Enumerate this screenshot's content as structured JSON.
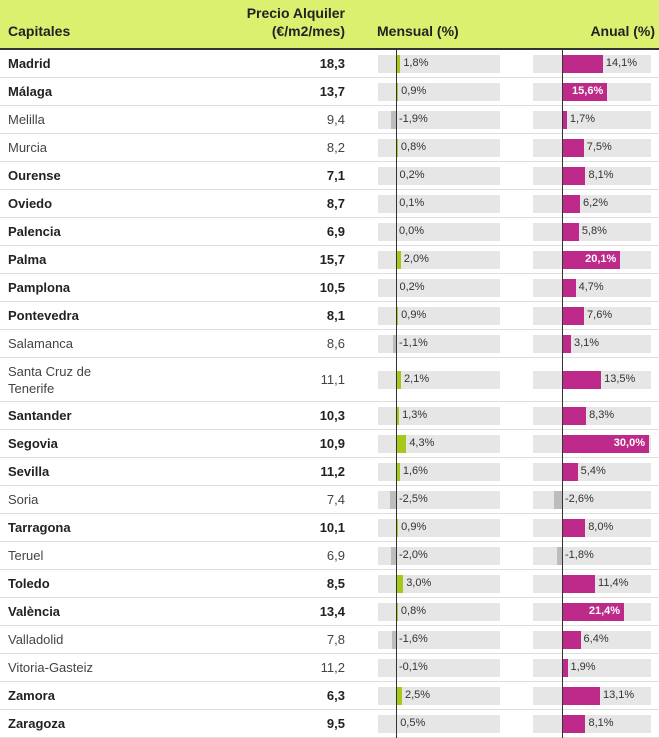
{
  "headers": {
    "capital": "Capitales",
    "price_line1": "Precio Alquiler",
    "price_line2": "(€/m2/mes)",
    "monthly": "Mensual (%)",
    "annual": "Anual (%)"
  },
  "colors": {
    "header_bg": "#dcf06f",
    "monthly_positive": "#a6c81b",
    "annual_positive": "#bd2a8a",
    "negative": "#bdbdbd",
    "track": "#e6e6e6"
  },
  "chart_data": {
    "type": "table",
    "columns": [
      "Capitales",
      "Precio Alquiler (€/m2/mes)",
      "Mensual (%)",
      "Anual (%)"
    ],
    "rows": [
      {
        "capital": "Madrid",
        "price": "18,3",
        "monthly": 1.8,
        "monthly_label": "1,8%",
        "annual": 14.1,
        "annual_label": "14,1%",
        "bold": true
      },
      {
        "capital": "Málaga",
        "price": "13,7",
        "monthly": 0.9,
        "monthly_label": "0,9%",
        "annual": 15.6,
        "annual_label": "15,6%",
        "bold": true
      },
      {
        "capital": "Melilla",
        "price": "9,4",
        "monthly": -1.9,
        "monthly_label": "-1,9%",
        "annual": 1.7,
        "annual_label": "1,7%",
        "bold": false
      },
      {
        "capital": "Murcia",
        "price": "8,2",
        "monthly": 0.8,
        "monthly_label": "0,8%",
        "annual": 7.5,
        "annual_label": "7,5%",
        "bold": false
      },
      {
        "capital": "Ourense",
        "price": "7,1",
        "monthly": 0.2,
        "monthly_label": "0,2%",
        "annual": 8.1,
        "annual_label": "8,1%",
        "bold": true
      },
      {
        "capital": "Oviedo",
        "price": "8,7",
        "monthly": 0.1,
        "monthly_label": "0,1%",
        "annual": 6.2,
        "annual_label": "6,2%",
        "bold": true
      },
      {
        "capital": "Palencia",
        "price": "6,9",
        "monthly": 0.0,
        "monthly_label": "0,0%",
        "annual": 5.8,
        "annual_label": "5,8%",
        "bold": true
      },
      {
        "capital": "Palma",
        "price": "15,7",
        "monthly": 2.0,
        "monthly_label": "2,0%",
        "annual": 20.1,
        "annual_label": "20,1%",
        "bold": true
      },
      {
        "capital": "Pamplona",
        "price": "10,5",
        "monthly": 0.2,
        "monthly_label": "0,2%",
        "annual": 4.7,
        "annual_label": "4,7%",
        "bold": true
      },
      {
        "capital": "Pontevedra",
        "price": "8,1",
        "monthly": 0.9,
        "monthly_label": "0,9%",
        "annual": 7.6,
        "annual_label": "7,6%",
        "bold": true
      },
      {
        "capital": "Salamanca",
        "price": "8,6",
        "monthly": -1.1,
        "monthly_label": "-1,1%",
        "annual": 3.1,
        "annual_label": "3,1%",
        "bold": false
      },
      {
        "capital": "Santa Cruz de Tenerife",
        "price": "11,1",
        "monthly": 2.1,
        "monthly_label": "2,1%",
        "annual": 13.5,
        "annual_label": "13,5%",
        "bold": false
      },
      {
        "capital": "Santander",
        "price": "10,3",
        "monthly": 1.3,
        "monthly_label": "1,3%",
        "annual": 8.3,
        "annual_label": "8,3%",
        "bold": true
      },
      {
        "capital": "Segovia",
        "price": "10,9",
        "monthly": 4.3,
        "monthly_label": "4,3%",
        "annual": 30.0,
        "annual_label": "30,0%",
        "bold": true
      },
      {
        "capital": "Sevilla",
        "price": "11,2",
        "monthly": 1.6,
        "monthly_label": "1,6%",
        "annual": 5.4,
        "annual_label": "5,4%",
        "bold": true
      },
      {
        "capital": "Soria",
        "price": "7,4",
        "monthly": -2.5,
        "monthly_label": "-2,5%",
        "annual": -2.6,
        "annual_label": "-2,6%",
        "bold": false
      },
      {
        "capital": "Tarragona",
        "price": "10,1",
        "monthly": 0.9,
        "monthly_label": "0,9%",
        "annual": 8.0,
        "annual_label": "8,0%",
        "bold": true
      },
      {
        "capital": "Teruel",
        "price": "6,9",
        "monthly": -2.0,
        "monthly_label": "-2,0%",
        "annual": -1.8,
        "annual_label": "-1,8%",
        "bold": false
      },
      {
        "capital": "Toledo",
        "price": "8,5",
        "monthly": 3.0,
        "monthly_label": "3,0%",
        "annual": 11.4,
        "annual_label": "11,4%",
        "bold": true
      },
      {
        "capital": "València",
        "price": "13,4",
        "monthly": 0.8,
        "monthly_label": "0,8%",
        "annual": 21.4,
        "annual_label": "21,4%",
        "bold": true
      },
      {
        "capital": "Valladolid",
        "price": "7,8",
        "monthly": -1.6,
        "monthly_label": "-1,6%",
        "annual": 6.4,
        "annual_label": "6,4%",
        "bold": false
      },
      {
        "capital": "Vitoria-Gasteiz",
        "price": "11,2",
        "monthly": -0.1,
        "monthly_label": "-0,1%",
        "annual": 1.9,
        "annual_label": "1,9%",
        "bold": false
      },
      {
        "capital": "Zamora",
        "price": "6,3",
        "monthly": 2.5,
        "monthly_label": "2,5%",
        "annual": 13.1,
        "annual_label": "13,1%",
        "bold": true
      },
      {
        "capital": "Zaragoza",
        "price": "9,5",
        "monthly": 0.5,
        "monthly_label": "0,5%",
        "annual": 8.1,
        "annual_label": "8,1%",
        "bold": true
      }
    ]
  }
}
